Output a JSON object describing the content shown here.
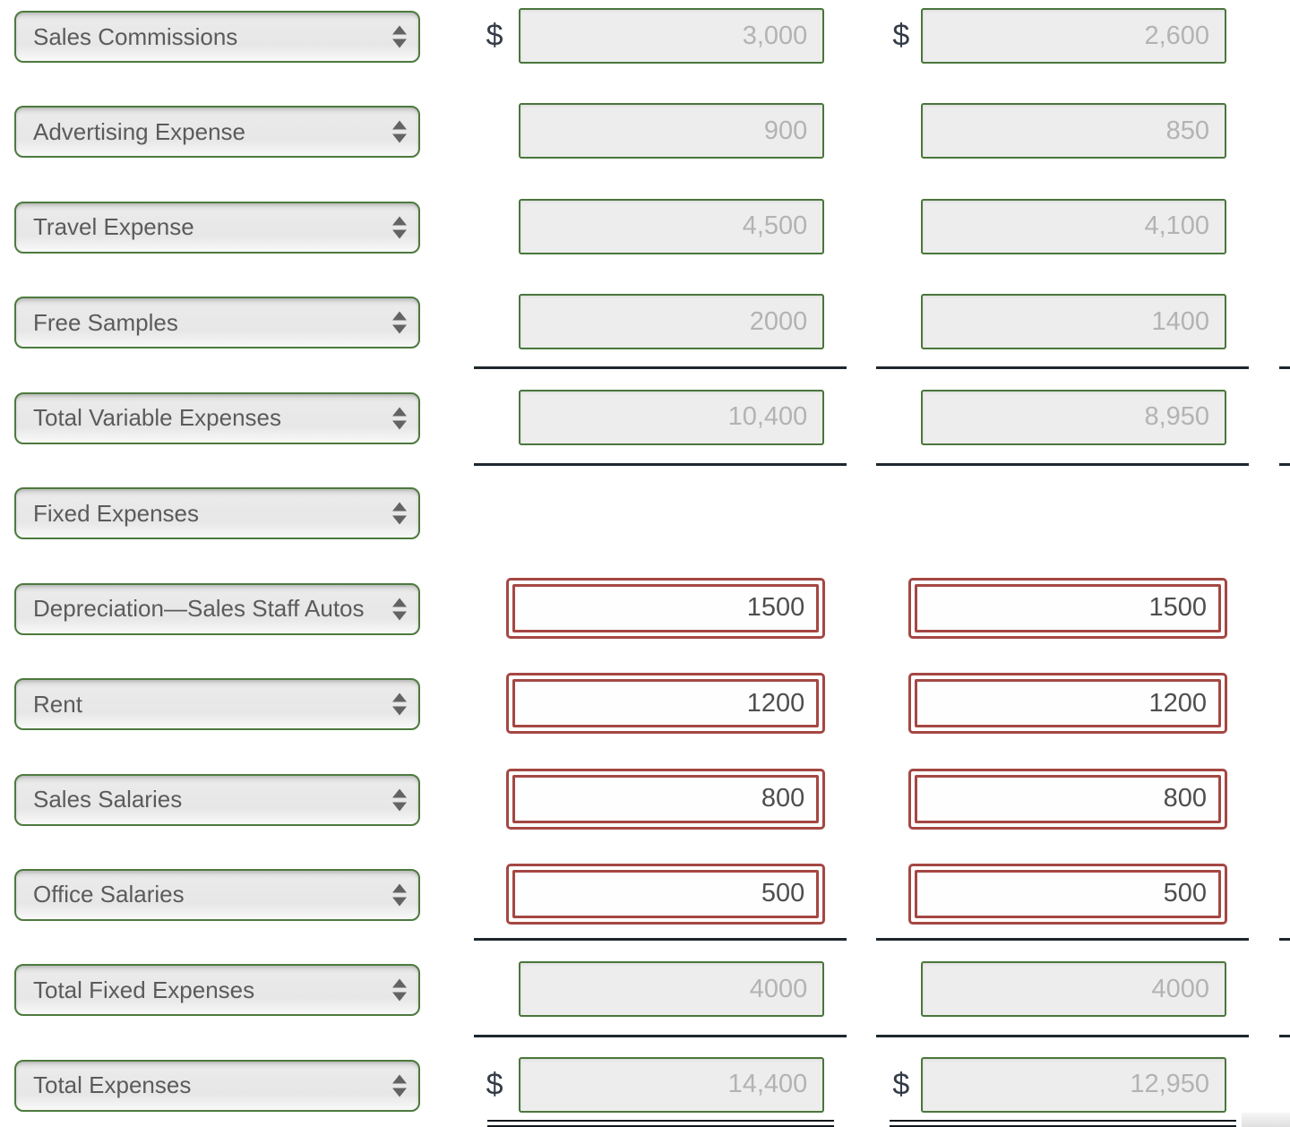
{
  "currency_symbol": "$",
  "palette": {
    "select_border_green": "#4d7a3e",
    "readonly_input_border_green": "#4a763c",
    "editable_input_border_red": "#a54743",
    "readonly_value_text": "#b3b3b3",
    "editable_value_text": "#4e4e4e",
    "label_text": "#5b5b5b",
    "dollar_text": "#333b46",
    "total_rule_color": "#1d272e"
  },
  "rows": [
    {
      "label": "Sales Commissions",
      "type": "readonly",
      "dollar": true,
      "rule_above": false,
      "rule_below": false,
      "double_rule_below": false,
      "col1": "3,000",
      "col2": "2,600"
    },
    {
      "label": "Advertising Expense",
      "type": "readonly",
      "dollar": false,
      "rule_above": false,
      "rule_below": false,
      "double_rule_below": false,
      "col1": "900",
      "col2": "850"
    },
    {
      "label": "Travel Expense",
      "type": "readonly",
      "dollar": false,
      "rule_above": false,
      "rule_below": false,
      "double_rule_below": false,
      "col1": "4,500",
      "col2": "4,100"
    },
    {
      "label": "Free Samples",
      "type": "readonly",
      "dollar": false,
      "rule_above": false,
      "rule_below": false,
      "double_rule_below": false,
      "col1": "2000",
      "col2": "1400"
    },
    {
      "label": "Total Variable Expenses",
      "type": "readonly",
      "dollar": false,
      "rule_above": true,
      "rule_below": true,
      "double_rule_below": false,
      "col1": "10,400",
      "col2": "8,950"
    },
    {
      "label": "Fixed Expenses",
      "type": "empty",
      "dollar": false,
      "rule_above": false,
      "rule_below": false,
      "double_rule_below": false,
      "col1": null,
      "col2": null
    },
    {
      "label": "Depreciation—Sales Staff Autos",
      "type": "editable",
      "dollar": false,
      "rule_above": false,
      "rule_below": false,
      "double_rule_below": false,
      "col1": "1500",
      "col2": "1500"
    },
    {
      "label": "Rent",
      "type": "editable",
      "dollar": false,
      "rule_above": false,
      "rule_below": false,
      "double_rule_below": false,
      "col1": "1200",
      "col2": "1200"
    },
    {
      "label": "Sales Salaries",
      "type": "editable",
      "dollar": false,
      "rule_above": false,
      "rule_below": false,
      "double_rule_below": false,
      "col1": "800",
      "col2": "800"
    },
    {
      "label": "Office Salaries",
      "type": "editable",
      "dollar": false,
      "rule_above": false,
      "rule_below": false,
      "double_rule_below": false,
      "col1": "500",
      "col2": "500"
    },
    {
      "label": "Total Fixed Expenses",
      "type": "readonly",
      "dollar": false,
      "rule_above": true,
      "rule_below": true,
      "double_rule_below": false,
      "col1": "4000",
      "col2": "4000"
    },
    {
      "label": "Total Expenses",
      "type": "readonly",
      "dollar": true,
      "rule_above": false,
      "rule_below": false,
      "double_rule_below": true,
      "col1": "14,400",
      "col2": "12,950"
    }
  ]
}
